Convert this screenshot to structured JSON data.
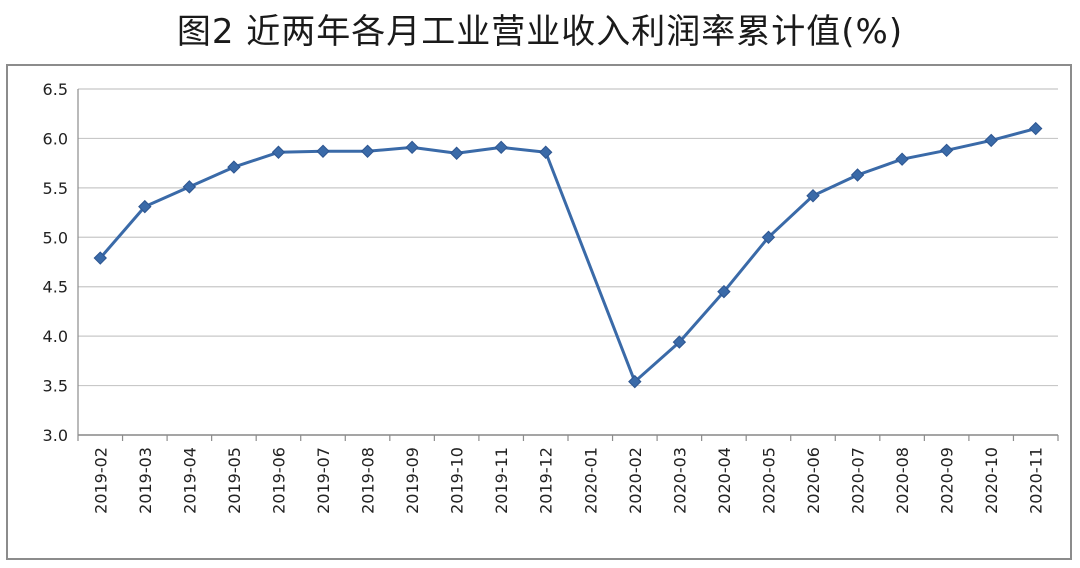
{
  "title": "图2 近两年各月工业营业收入利润率累计值(%)",
  "chart_data": {
    "type": "line",
    "title": "图2 近两年各月工业营业收入利润率累计值(%)",
    "xlabel": "",
    "ylabel": "",
    "ylim": [
      3.0,
      6.5
    ],
    "yticks": [
      "3.0",
      "3.5",
      "4.0",
      "4.5",
      "5.0",
      "5.5",
      "6.0",
      "6.5"
    ],
    "grid": "horizontal",
    "categories": [
      "2019-02",
      "2019-03",
      "2019-04",
      "2019-05",
      "2019-06",
      "2019-07",
      "2019-08",
      "2019-09",
      "2019-10",
      "2019-11",
      "2019-12",
      "2020-01",
      "2020-02",
      "2020-03",
      "2020-04",
      "2020-05",
      "2020-06",
      "2020-07",
      "2020-08",
      "2020-09",
      "2020-10",
      "2020-11"
    ],
    "series": [
      {
        "values": [
          4.79,
          5.31,
          5.51,
          5.71,
          5.86,
          5.87,
          5.87,
          5.91,
          5.85,
          5.91,
          5.86,
          null,
          3.54,
          3.94,
          4.45,
          5.0,
          5.42,
          5.63,
          5.79,
          5.88,
          5.98,
          6.1
        ],
        "color": "#3a6aa8"
      }
    ]
  }
}
